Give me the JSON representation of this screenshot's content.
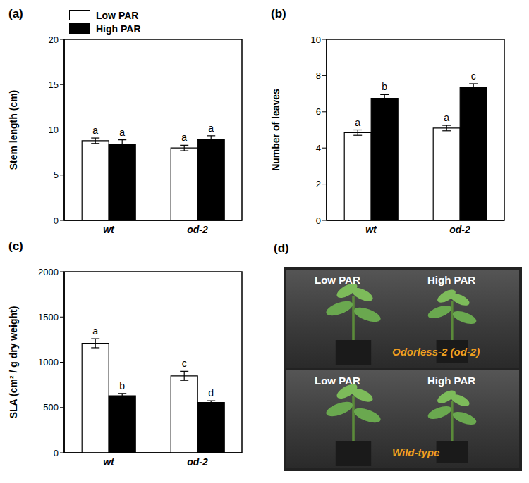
{
  "chart_data": [
    {
      "type": "bar",
      "title": "(a)",
      "y_label": "Stem length (cm)",
      "categories": [
        "wt",
        "od-2"
      ],
      "ylim": [
        0,
        20
      ],
      "yticks": [
        0,
        5,
        10,
        15,
        20
      ],
      "legend": "top",
      "series": [
        {
          "name": "Low PAR",
          "color": "#ffffff",
          "values": [
            8.8,
            8.0
          ],
          "errors": [
            0.3,
            0.3
          ],
          "letters": [
            "a",
            "a"
          ]
        },
        {
          "name": "High PAR",
          "color": "#000000",
          "values": [
            8.4,
            8.9
          ],
          "errors": [
            0.5,
            0.45
          ],
          "letters": [
            "a",
            "a"
          ]
        }
      ]
    },
    {
      "type": "bar",
      "title": "(b)",
      "y_label": "Number of leaves",
      "categories": [
        "wt",
        "od-2"
      ],
      "ylim": [
        0,
        10
      ],
      "yticks": [
        0,
        2,
        4,
        6,
        8,
        10
      ],
      "series": [
        {
          "name": "Low PAR",
          "color": "#ffffff",
          "values": [
            4.85,
            5.1
          ],
          "errors": [
            0.15,
            0.15
          ],
          "letters": [
            "a",
            "a"
          ]
        },
        {
          "name": "High PAR",
          "color": "#000000",
          "values": [
            6.75,
            7.35
          ],
          "errors": [
            0.2,
            0.2
          ],
          "letters": [
            "b",
            "c"
          ]
        }
      ]
    },
    {
      "type": "bar",
      "title": "(c)",
      "y_label": "SLA (cm² / g dry weight)",
      "categories": [
        "wt",
        "od-2"
      ],
      "ylim": [
        0,
        2000
      ],
      "yticks": [
        0,
        500,
        1000,
        1500,
        2000
      ],
      "series": [
        {
          "name": "Low PAR",
          "color": "#ffffff",
          "values": [
            1210,
            850
          ],
          "errors": [
            50,
            50
          ],
          "letters": [
            "a",
            "c"
          ]
        },
        {
          "name": "High PAR",
          "color": "#000000",
          "values": [
            630,
            555
          ],
          "errors": [
            25,
            20
          ],
          "letters": [
            "b",
            "d"
          ]
        }
      ]
    }
  ],
  "photo": {
    "title": "(d)",
    "images": [
      {
        "labels": [
          "Low PAR",
          "High PAR"
        ],
        "caption": "Odorless-2 (od-2)"
      },
      {
        "labels": [
          "Low PAR",
          "High PAR"
        ],
        "caption": "Wild-type"
      }
    ]
  }
}
